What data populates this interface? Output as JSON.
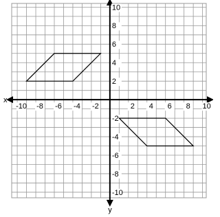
{
  "chart_data": {
    "type": "polygon",
    "xlabel": "x",
    "ylabel": "y",
    "series": [
      {
        "color": "#000000",
        "x": [
          -9,
          -4,
          -1,
          -6
        ],
        "values": [
          2,
          2,
          5,
          5
        ]
      },
      {
        "color": "#000000",
        "x": [
          1,
          6,
          9,
          4
        ],
        "values": [
          -2,
          -2,
          -5,
          -5
        ]
      }
    ],
    "xlim": [
      -10.6,
      10.4
    ],
    "ylim": [
      -10.6,
      10.4
    ],
    "xticks": [
      -10,
      -8,
      -6,
      -4,
      -2,
      2,
      4,
      6,
      8,
      10
    ],
    "yticks": [
      10,
      8,
      6,
      4,
      2,
      -2,
      -4,
      -6,
      -8,
      -10
    ],
    "grid": true,
    "grid_step": 1
  }
}
